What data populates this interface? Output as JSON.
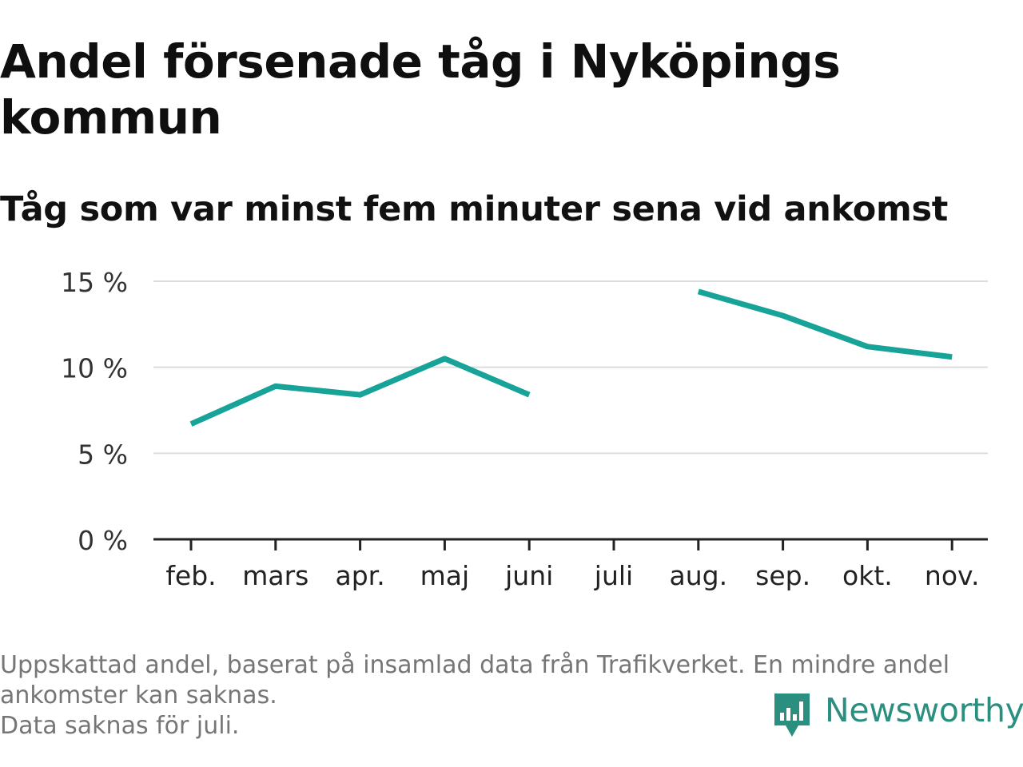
{
  "title": "Andel försenade tåg i Nyköpings kommun",
  "subtitle": "Tåg som var minst fem minuter sena vid ankomst",
  "footer": {
    "note_line1": "Uppskattad andel, baserat på insamlad data från Trafikverket. En mindre andel ankomster kan saknas.",
    "note_line2": "Data saknas för juli."
  },
  "logo": {
    "text": "Newsworthy",
    "icon": "bar-chart-speech-bubble-icon"
  },
  "colors": {
    "line": "#17a398",
    "grid": "#dcdcdc",
    "axis": "#222222",
    "brand": "#2b8f80"
  },
  "chart_data": {
    "type": "line",
    "categories": [
      "feb.",
      "mars",
      "apr.",
      "maj",
      "juni",
      "juli",
      "aug.",
      "sep.",
      "okt.",
      "nov."
    ],
    "series": [
      {
        "values": [
          6.7,
          8.9,
          8.4,
          10.5,
          8.4,
          null,
          14.4,
          13.0,
          11.2,
          10.6
        ]
      }
    ],
    "yticks": [
      "0 %",
      "5 %",
      "10 %",
      "15 %"
    ],
    "ytick_values": [
      0,
      5,
      10,
      15
    ],
    "ylim": [
      0,
      15
    ],
    "grid": true,
    "legend": "none"
  }
}
